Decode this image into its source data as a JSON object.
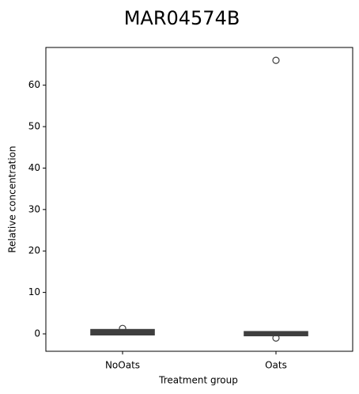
{
  "chart_data": {
    "type": "box",
    "title": "MAR04574B",
    "x_label": "Treatment group",
    "y_label": "Relative concentration",
    "categories": [
      "NoOats",
      "Oats"
    ],
    "boxes": [
      {
        "min": -0.1,
        "q1": 0,
        "median": 0.3,
        "q3": 0.8,
        "max": 1.0,
        "outliers": [
          1.3
        ]
      },
      {
        "min": -0.4,
        "q1": -0.2,
        "median": 0,
        "q3": 0.3,
        "max": 0.4,
        "outliers": [
          66,
          -1
        ]
      }
    ],
    "color": "#3f3f3f",
    "ylim": [
      -4.2,
      69.1
    ],
    "yticks": [
      0,
      10,
      20,
      30,
      40,
      50,
      60
    ],
    "grid": false
  }
}
